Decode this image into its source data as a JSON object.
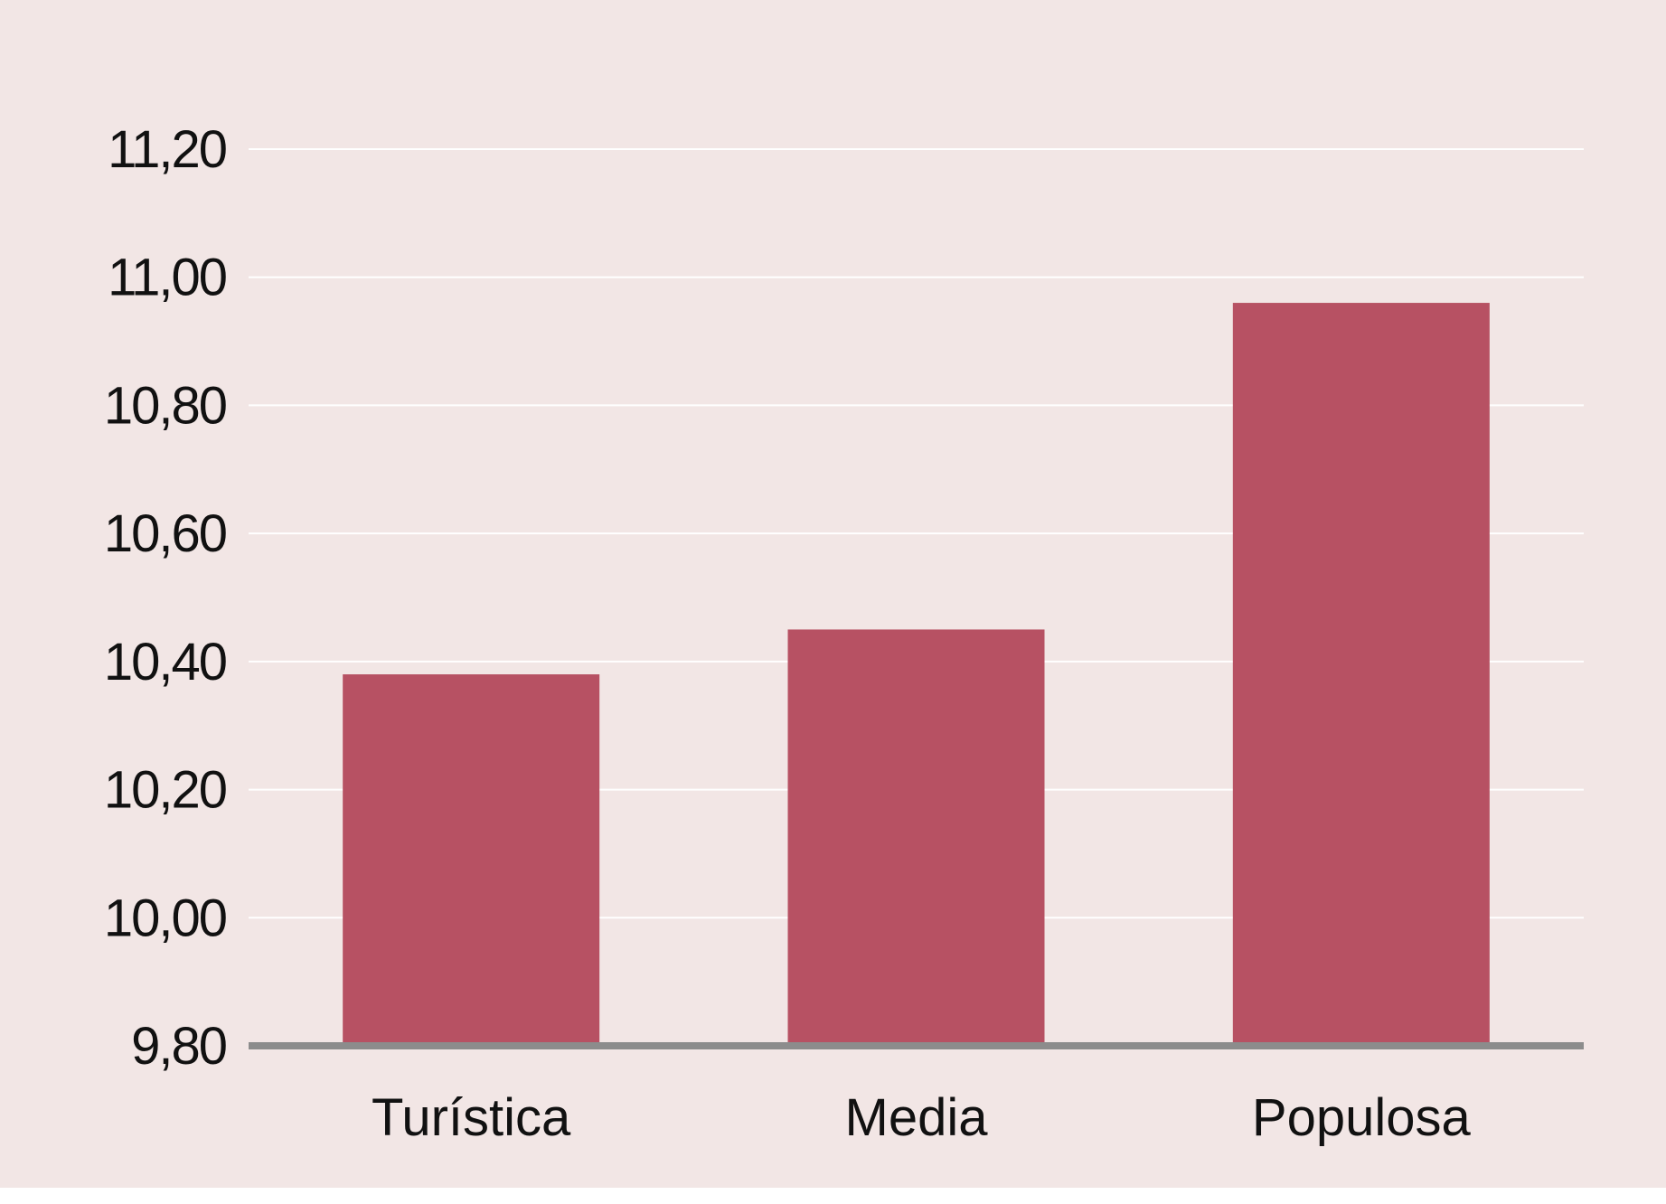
{
  "colors": {
    "background": "#f2e6e5",
    "bar": "#b75163",
    "gridline": "#ffffff",
    "baseline": "#8c8c8c",
    "text": "#111111"
  },
  "chart_data": {
    "type": "bar",
    "categories": [
      "Turística",
      "Media",
      "Populosa"
    ],
    "values": [
      10.38,
      10.45,
      10.96
    ],
    "ylim": [
      9.8,
      11.2
    ],
    "yticks": [
      9.8,
      10.0,
      10.2,
      10.4,
      10.6,
      10.8,
      11.0,
      11.2
    ],
    "ytick_labels": [
      "9,80",
      "10,00",
      "10,20",
      "10,40",
      "10,60",
      "10,80",
      "11,00",
      "11,20"
    ],
    "grid": true,
    "legend": "none",
    "title": "",
    "xlabel": "",
    "ylabel": ""
  }
}
